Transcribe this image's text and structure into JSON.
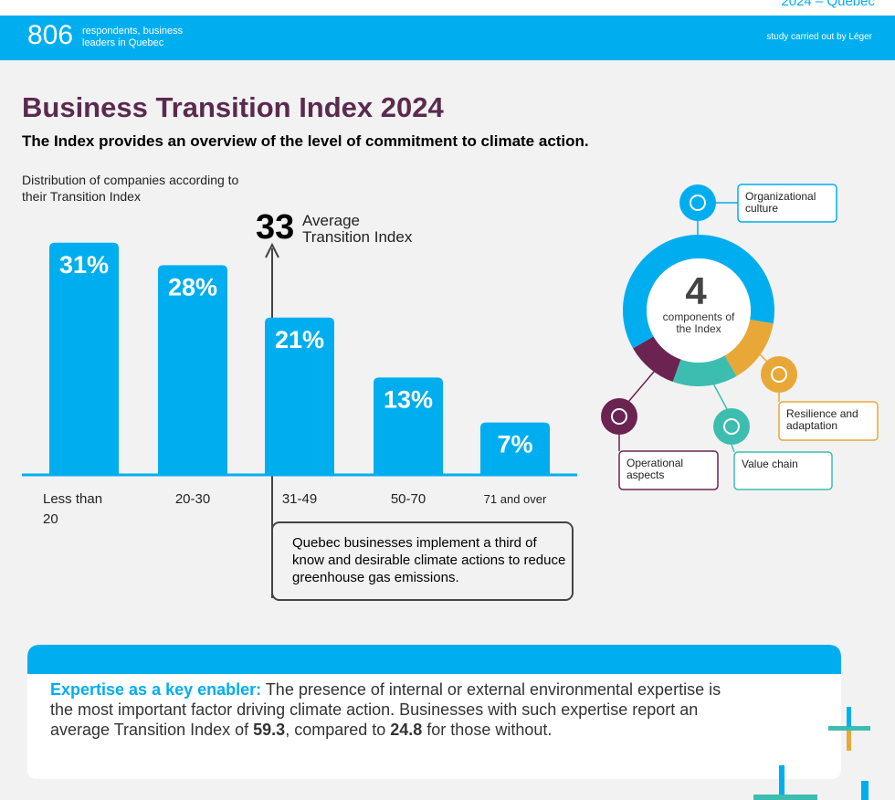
{
  "header": {
    "top_right": "2024 – Quebec",
    "count": "806",
    "count_label": "respondents, business leaders in Quebec",
    "credit": "study carried out by Léger"
  },
  "title": "Business Transition Index 2024",
  "subtitle": "The Index provides an overview of the level of commitment to climate action.",
  "chart_data": {
    "type": "bar",
    "title": "Distribution of companies according to their Transition Index",
    "categories": [
      "Less than 20",
      "20-30",
      "31-49",
      "50-70",
      "71 and over"
    ],
    "values": [
      31,
      28,
      21,
      13,
      7
    ],
    "value_labels": [
      "31%",
      "28%",
      "21%",
      "13%",
      "7%"
    ],
    "color": "#00aeef"
  },
  "average": {
    "value": "33",
    "label": "Average Transition Index",
    "note": "Quebec businesses implement a third of know and desirable climate actions to reduce greenhouse gas emissions."
  },
  "components": {
    "count": "4",
    "label": "components of the Index",
    "items": [
      "Organizational culture",
      "Resilience and adaptation",
      "Value chain",
      "Operational aspects"
    ]
  },
  "footer": {
    "lead": "Expertise as a key enabler:",
    "text1": " The presence of internal or external environmental expertise is the most important factor driving climate action. Businesses with such expertise report an average Transition Index of ",
    "with": "59.3",
    "text2": ", compared to ",
    "without": "24.8",
    "text3": " for those without."
  }
}
